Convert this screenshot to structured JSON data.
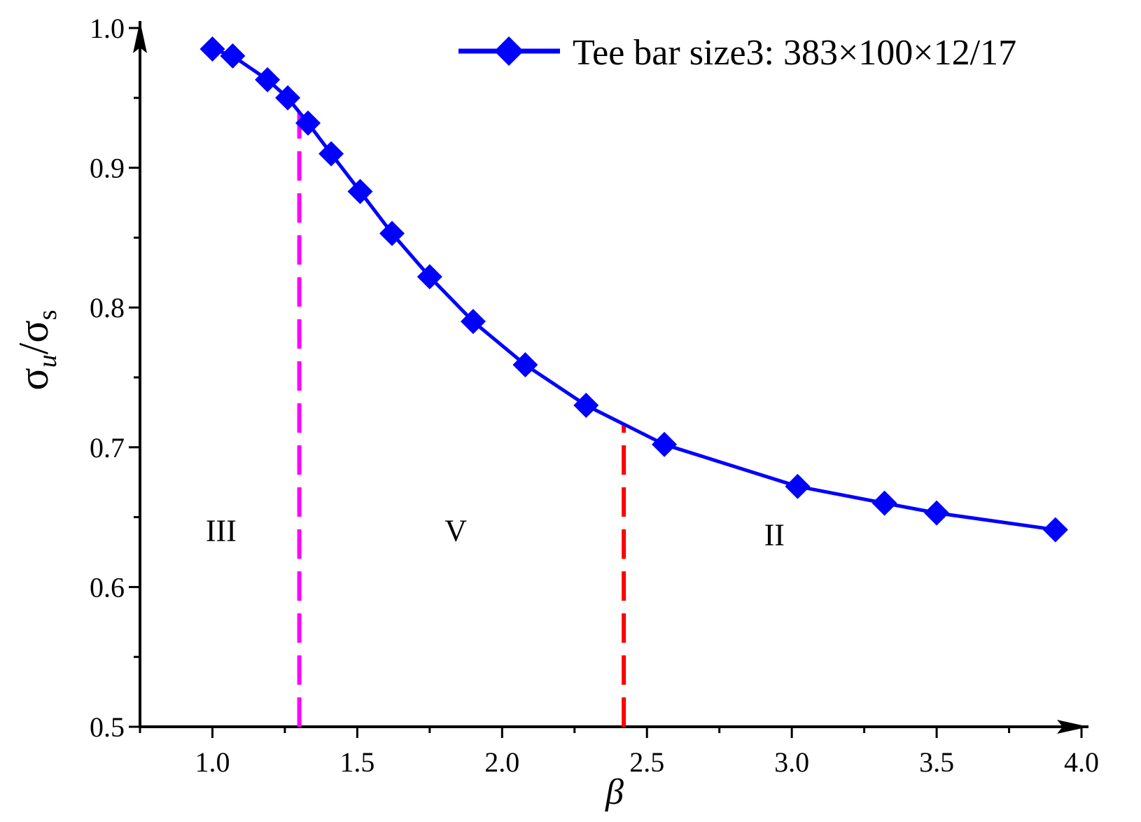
{
  "chart_data": {
    "type": "line",
    "title": "",
    "xlabel": "β",
    "ylabel": {
      "main": "σ",
      "sub1": "u",
      "slash": "/",
      "main2": "σ",
      "sub2": "s"
    },
    "xlim": [
      0.75,
      4.0
    ],
    "ylim": [
      0.5,
      1.0
    ],
    "x_ticks": [
      1.0,
      1.5,
      2.0,
      2.5,
      3.0,
      3.5,
      4.0
    ],
    "x_tick_labels": [
      "1.0",
      "1.5",
      "2.0",
      "2.5",
      "3.0",
      "3.5",
      "4.0"
    ],
    "y_ticks": [
      0.5,
      0.6,
      0.7,
      0.8,
      0.9,
      1.0
    ],
    "y_tick_labels": [
      "0.5",
      "0.6",
      "0.7",
      "0.8",
      "0.9",
      "1.0"
    ],
    "grid": false,
    "legend_position": "top-right",
    "series": [
      {
        "name": "Tee bar size3: 383×100×12/17",
        "color": "#0000ff",
        "marker": "diamond",
        "x": [
          1.0,
          1.07,
          1.19,
          1.26,
          1.33,
          1.41,
          1.51,
          1.62,
          1.75,
          1.9,
          2.08,
          2.29,
          2.56,
          3.02,
          3.32,
          3.5,
          3.91
        ],
        "y": [
          0.985,
          0.98,
          0.963,
          0.95,
          0.932,
          0.91,
          0.883,
          0.853,
          0.822,
          0.79,
          0.759,
          0.73,
          0.702,
          0.672,
          0.66,
          0.653,
          0.641
        ]
      }
    ],
    "reference_lines": [
      {
        "x": 1.3,
        "y_top": 0.94,
        "color": "#ff00ff",
        "style": "dashed"
      },
      {
        "x": 2.42,
        "y_top": 0.717,
        "color": "#ff0000",
        "style": "dashed"
      }
    ],
    "annotations": [
      {
        "text": "III",
        "x": 1.03,
        "y": 0.633
      },
      {
        "text": "V",
        "x": 1.84,
        "y": 0.633
      },
      {
        "text": "II",
        "x": 2.94,
        "y": 0.63
      }
    ]
  }
}
